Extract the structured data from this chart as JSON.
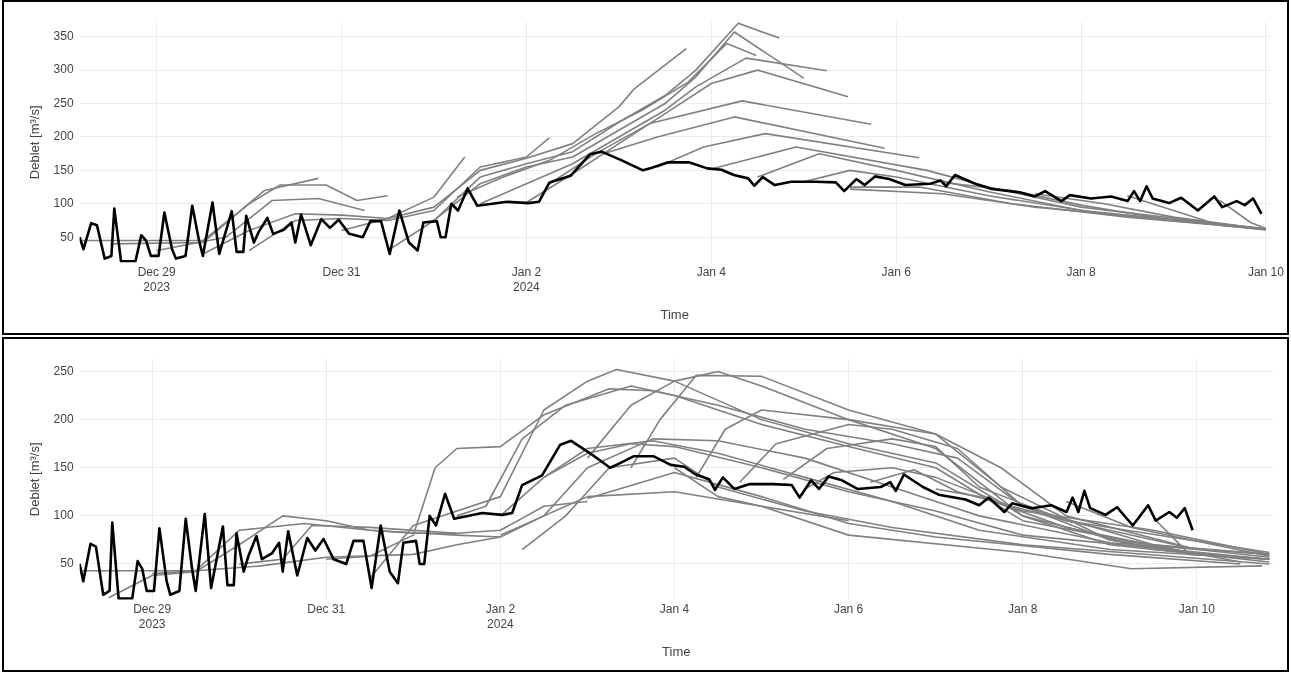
{
  "chart_data": [
    {
      "type": "line",
      "xlabel": "Time",
      "ylabel": "Deblet [m³/s]",
      "grid": true,
      "xlim": [
        "2023-12-28T04:00",
        "2024-01-10T01:00"
      ],
      "ylim": [
        12,
        372
      ],
      "xticks": [
        {
          "value": "2023-12-29",
          "label": "Dec 29\n2023"
        },
        {
          "value": "2023-12-31",
          "label": "Dec 31"
        },
        {
          "value": "2024-01-02",
          "label": "Jan 2\n2024"
        },
        {
          "value": "2024-01-04",
          "label": "Jan 4"
        },
        {
          "value": "2024-01-06",
          "label": "Jan 6"
        },
        {
          "value": "2024-01-08",
          "label": "Jan 8"
        },
        {
          "value": "2024-01-10",
          "label": "Jan 10"
        }
      ],
      "yticks": [
        50,
        100,
        150,
        200,
        250,
        300,
        350
      ],
      "series": [
        {
          "color": "#000000",
          "x": [
            "2023-12-28T04:00",
            "2023-12-28T05:00",
            "2023-12-28T07:00",
            "2023-12-28T08:30",
            "2023-12-28T10:30",
            "2023-12-28T12:15",
            "2023-12-28T13:00",
            "2023-12-28T14:45",
            "2023-12-28T18:30",
            "2023-12-28T20:00",
            "2023-12-28T21:15",
            "2023-12-28T22:30",
            "2023-12-29T00:30",
            "2023-12-29T02:00",
            "2023-12-29T04:00",
            "2023-12-29T05:00",
            "2023-12-29T07:30",
            "2023-12-29T09:15",
            "2023-12-29T11:00",
            "2023-12-29T12:00",
            "2023-12-29T14:30",
            "2023-12-29T16:15",
            "2023-12-29T19:30",
            "2023-12-29T20:45",
            "2023-12-29T22:30",
            "2023-12-29T23:15",
            "2023-12-30T01:15",
            "2023-12-30T02:30",
            "2023-12-30T04:45",
            "2023-12-30T06:15",
            "2023-12-30T09:00",
            "2023-12-30T11:00",
            "2023-12-30T12:00",
            "2023-12-30T13:30",
            "2023-12-30T16:00",
            "2023-12-30T18:45",
            "2023-12-30T21:00",
            "2023-12-30T23:15",
            "2023-12-31T02:00",
            "2023-12-31T05:30",
            "2023-12-31T07:30",
            "2023-12-31T10:15",
            "2023-12-31T12:30",
            "2023-12-31T15:00",
            "2023-12-31T17:30",
            "2023-12-31T19:45",
            "2023-12-31T21:15",
            "2024-01-01T00:45",
            "2024-01-01T01:45",
            "2024-01-01T03:00",
            "2024-01-01T04:30",
            "2024-01-01T06:15",
            "2024-01-01T08:45",
            "2024-01-01T11:15",
            "2024-01-01T19:00",
            "2024-01-02T00:30",
            "2024-01-02T03:15",
            "2024-01-02T06:00",
            "2024-01-02T11:30",
            "2024-01-02T16:30",
            "2024-01-02T19:30",
            "2024-01-03T00:45",
            "2024-01-03T06:15",
            "2024-01-03T08:35",
            "2024-01-03T12:50",
            "2024-01-03T18:10",
            "2024-01-03T22:55",
            "2024-01-04T02:40",
            "2024-01-04T05:50",
            "2024-01-04T09:35",
            "2024-01-04T11:10",
            "2024-01-04T13:20",
            "2024-01-04T16:30",
            "2024-01-04T20:45",
            "2024-01-05T03:10",
            "2024-01-05T08:20",
            "2024-01-05T10:30",
            "2024-01-05T13:40",
            "2024-01-05T15:50",
            "2024-01-05T18:30",
            "2024-01-05T22:10",
            "2024-01-06T02:25",
            "2024-01-06T08:50",
            "2024-01-06T11:30",
            "2024-01-06T13:00",
            "2024-01-06T15:15",
            "2024-01-06T20:30",
            "2024-01-07T00:50",
            "2024-01-07T08:15",
            "2024-01-07T12:00",
            "2024-01-07T14:40",
            "2024-01-07T18:55",
            "2024-01-07T21:05",
            "2024-01-08T02:35",
            "2024-01-08T07:50",
            "2024-01-08T12:05",
            "2024-01-08T13:45",
            "2024-01-08T15:20",
            "2024-01-08T17:00",
            "2024-01-08T18:35",
            "2024-01-08T22:50",
            "2024-01-09T02:00",
            "2024-01-09T06:20",
            "2024-01-09T10:35",
            "2024-01-09T12:40",
            "2024-01-09T16:25",
            "2024-01-09T18:30",
            "2024-01-09T20:40",
            "2024-01-09T22:50"
          ],
          "values": [
            50,
            32,
            71,
            68,
            18,
            22,
            93,
            14,
            14,
            53,
            45,
            22,
            22,
            87,
            32,
            18,
            22,
            97,
            45,
            22,
            102,
            25,
            89,
            28,
            28,
            82,
            42,
            58,
            79,
            55,
            61,
            72,
            42,
            84,
            38,
            77,
            64,
            76,
            55,
            50,
            74,
            74,
            25,
            90,
            42,
            30,
            72,
            74,
            50,
            50,
            100,
            90,
            123,
            97,
            103,
            101,
            103,
            132,
            142,
            174,
            178,
            165,
            150,
            154,
            162,
            162,
            153,
            151,
            143,
            138,
            127,
            140,
            128,
            133,
            133,
            132,
            119,
            137,
            128,
            141,
            137,
            128,
            130,
            135,
            126,
            143,
            130,
            122,
            117,
            111,
            119,
            104,
            113,
            108,
            111,
            104,
            119,
            104,
            126,
            108,
            101,
            109,
            90,
            111,
            95,
            104,
            98,
            108,
            85
          ]
        },
        {
          "color": "#808080",
          "x": [
            "2023-12-28T04:00",
            "2023-12-29T12:00",
            "2023-12-30T00:00",
            "2023-12-30T08:00",
            "2023-12-30T20:00",
            "2023-12-31T04:00",
            "2023-12-31T12:00"
          ],
          "values": [
            45,
            45,
            100,
            128,
            128,
            105,
            112
          ]
        },
        {
          "color": "#808080",
          "x": [
            "2023-12-28T12:00",
            "2023-12-29T12:00",
            "2023-12-30T04:00",
            "2023-12-30T18:00"
          ],
          "values": [
            40,
            42,
            120,
            138
          ]
        },
        {
          "color": "#808080",
          "x": [
            "2023-12-29T00:00",
            "2023-12-29T18:00",
            "2023-12-30T06:00",
            "2023-12-30T18:00",
            "2023-12-31T06:00"
          ],
          "values": [
            30,
            50,
            105,
            108,
            90
          ]
        },
        {
          "color": "#808080",
          "x": [
            "2023-12-29T12:00",
            "2023-12-30T00:00",
            "2023-12-30T12:00",
            "2023-12-31T00:00",
            "2023-12-31T12:00",
            "2024-01-01T00:00",
            "2024-01-01T08:00"
          ],
          "values": [
            25,
            60,
            85,
            83,
            78,
            110,
            170
          ]
        },
        {
          "color": "#808080",
          "x": [
            "2023-12-30T00:00",
            "2023-12-30T12:00",
            "2023-12-31T00:00",
            "2023-12-31T12:00",
            "2024-01-01T00:00",
            "2024-01-01T12:00",
            "2024-01-02T00:00",
            "2024-01-02T06:00"
          ],
          "values": [
            30,
            75,
            78,
            75,
            90,
            155,
            170,
            199
          ]
        },
        {
          "color": "#808080",
          "x": [
            "2023-12-31T00:00",
            "2023-12-31T12:00",
            "2024-01-01T00:00",
            "2024-01-01T12:00",
            "2024-01-02T00:00",
            "2024-01-02T12:00",
            "2024-01-03T00:00",
            "2024-01-03T04:00",
            "2024-01-03T17:30"
          ],
          "values": [
            60,
            78,
            95,
            150,
            168,
            190,
            245,
            272,
            332
          ]
        },
        {
          "color": "#808080",
          "x": [
            "2023-12-31T12:00",
            "2024-01-01T00:00",
            "2024-01-01T12:00",
            "2024-01-02T00:00",
            "2024-01-02T12:00",
            "2024-01-03T00:00",
            "2024-01-03T12:00",
            "2024-01-03T20:00",
            "2024-01-04T07:00",
            "2024-01-04T17:40"
          ],
          "values": [
            30,
            75,
            140,
            160,
            178,
            222,
            262,
            300,
            370,
            348
          ]
        },
        {
          "color": "#808080",
          "x": [
            "2024-01-01T00:00",
            "2024-01-01T12:00",
            "2024-01-02T00:00",
            "2024-01-02T12:00",
            "2024-01-03T00:00",
            "2024-01-03T12:00",
            "2024-01-03T20:00",
            "2024-01-04T06:00",
            "2024-01-05T00:00"
          ],
          "values": [
            75,
            130,
            155,
            170,
            210,
            250,
            290,
            357,
            288
          ]
        },
        {
          "color": "#808080",
          "x": [
            "2024-01-01T06:00",
            "2024-01-01T18:00",
            "2024-01-02T06:00",
            "2024-01-02T18:00",
            "2024-01-03T06:00",
            "2024-01-03T18:00",
            "2024-01-04T04:00",
            "2024-01-04T11:40"
          ],
          "values": [
            110,
            140,
            165,
            205,
            240,
            282,
            340,
            322
          ]
        },
        {
          "color": "#808080",
          "x": [
            "2024-01-01T12:00",
            "2024-01-02T00:00",
            "2024-01-02T12:00",
            "2024-01-03T00:00",
            "2024-01-03T12:00",
            "2024-01-03T20:00",
            "2024-01-04T09:00",
            "2024-01-05T06:00"
          ],
          "values": [
            100,
            130,
            160,
            200,
            240,
            275,
            318,
            299
          ]
        },
        {
          "color": "#808080",
          "x": [
            "2024-01-02T00:00",
            "2024-01-02T12:00",
            "2024-01-03T00:00",
            "2024-01-03T12:00",
            "2024-01-04T00:00",
            "2024-01-04T12:00",
            "2024-01-05T11:30"
          ],
          "values": [
            102,
            145,
            190,
            235,
            280,
            300,
            260
          ]
        },
        {
          "color": "#808080",
          "x": [
            "2024-01-02T06:00",
            "2024-01-02T18:00",
            "2024-01-03T08:00",
            "2024-01-04T08:00",
            "2024-01-05T17:30"
          ],
          "values": [
            130,
            175,
            220,
            254,
            219
          ]
        },
        {
          "color": "#808080",
          "x": [
            "2024-01-02T20:00",
            "2024-01-03T10:00",
            "2024-01-04T06:00",
            "2024-01-05T21:00"
          ],
          "values": [
            175,
            200,
            230,
            183
          ]
        },
        {
          "color": "#808080",
          "x": [
            "2024-01-03T10:00",
            "2024-01-03T22:00",
            "2024-01-04T14:00",
            "2024-01-06T06:00"
          ],
          "values": [
            155,
            185,
            205,
            169
          ]
        },
        {
          "color": "#808080",
          "x": [
            "2024-01-04T00:00",
            "2024-01-04T12:00",
            "2024-01-04T22:00",
            "2024-01-06T08:00",
            "2024-01-07T00:00",
            "2024-01-08T00:00",
            "2024-01-10T00:00"
          ],
          "values": [
            152,
            170,
            185,
            150,
            125,
            95,
            62
          ]
        },
        {
          "color": "#808080",
          "x": [
            "2024-01-04T12:00",
            "2024-01-05T04:00",
            "2024-01-06T00:00",
            "2024-01-07T00:00",
            "2024-01-08T00:00",
            "2024-01-10T00:00"
          ],
          "values": [
            140,
            175,
            150,
            118,
            90,
            63
          ]
        },
        {
          "color": "#808080",
          "x": [
            "2024-01-05T00:00",
            "2024-01-05T12:00",
            "2024-01-06T00:00",
            "2024-01-07T00:00",
            "2024-01-08T06:00",
            "2024-01-10T00:00"
          ],
          "values": [
            133,
            150,
            140,
            112,
            85,
            62
          ]
        },
        {
          "color": "#808080",
          "x": [
            "2024-01-05T12:00",
            "2024-01-06T06:00",
            "2024-01-07T06:00",
            "2024-01-08T12:00",
            "2024-01-10T00:00"
          ],
          "values": [
            125,
            125,
            100,
            80,
            62
          ]
        },
        {
          "color": "#808080",
          "x": [
            "2024-01-05T12:00",
            "2024-01-06T12:00",
            "2024-01-07T12:00",
            "2024-01-08T12:00",
            "2024-01-10T00:00"
          ],
          "values": [
            122,
            115,
            95,
            82,
            61
          ]
        },
        {
          "color": "#808080",
          "x": [
            "2024-01-06T12:00",
            "2024-01-07T06:00",
            "2024-01-08T00:00",
            "2024-01-09T00:00",
            "2024-01-10T00:00"
          ],
          "values": [
            132,
            120,
            98,
            75,
            62
          ]
        },
        {
          "color": "#808080",
          "x": [
            "2024-01-07T12:00",
            "2024-01-08T06:00",
            "2024-01-09T00:00",
            "2024-01-10T00:00"
          ],
          "values": [
            115,
            100,
            80,
            62
          ]
        },
        {
          "color": "#808080",
          "x": [
            "2024-01-08T12:00",
            "2024-01-09T00:00",
            "2024-01-09T12:00",
            "2024-01-10T00:00"
          ],
          "values": [
            112,
            90,
            68,
            62
          ]
        },
        {
          "color": "#808080",
          "x": [
            "2024-01-09T12:00",
            "2024-01-09T20:00",
            "2024-01-10T00:00"
          ],
          "values": [
            105,
            72,
            63
          ]
        }
      ]
    },
    {
      "type": "line",
      "xlabel": "Time",
      "ylabel": "Deblet [m³/s]",
      "grid": true,
      "xlim": [
        "2023-12-28T04:00",
        "2024-01-10T21:00"
      ],
      "ylim": [
        13,
        263
      ],
      "xticks": [
        {
          "value": "2023-12-29",
          "label": "Dec 29\n2023"
        },
        {
          "value": "2023-12-31",
          "label": "Dec 31"
        },
        {
          "value": "2024-01-02",
          "label": "Jan 2\n2024"
        },
        {
          "value": "2024-01-04",
          "label": "Jan 4"
        },
        {
          "value": "2024-01-06",
          "label": "Jan 6"
        },
        {
          "value": "2024-01-08",
          "label": "Jan 8"
        },
        {
          "value": "2024-01-10",
          "label": "Jan 10"
        }
      ],
      "yticks": [
        50,
        100,
        150,
        200,
        250
      ],
      "series": [
        {
          "color": "#000000",
          "x": [
            "2023-12-28T04:00",
            "2023-12-28T05:00",
            "2023-12-28T07:00",
            "2023-12-28T08:30",
            "2023-12-28T10:30",
            "2023-12-28T12:15",
            "2023-12-28T13:00",
            "2023-12-28T14:45",
            "2023-12-28T18:30",
            "2023-12-28T20:00",
            "2023-12-28T21:15",
            "2023-12-28T22:30",
            "2023-12-29T00:30",
            "2023-12-29T02:00",
            "2023-12-29T04:00",
            "2023-12-29T05:00",
            "2023-12-29T07:30",
            "2023-12-29T09:15",
            "2023-12-29T11:00",
            "2023-12-29T12:00",
            "2023-12-29T14:30",
            "2023-12-29T16:15",
            "2023-12-29T19:30",
            "2023-12-29T20:45",
            "2023-12-29T22:30",
            "2023-12-29T23:15",
            "2023-12-30T01:15",
            "2023-12-30T02:30",
            "2023-12-30T04:45",
            "2023-12-30T06:15",
            "2023-12-30T09:00",
            "2023-12-30T11:00",
            "2023-12-30T12:00",
            "2023-12-30T13:30",
            "2023-12-30T16:00",
            "2023-12-30T18:45",
            "2023-12-30T21:00",
            "2023-12-30T23:15",
            "2023-12-31T02:00",
            "2023-12-31T05:30",
            "2023-12-31T07:30",
            "2023-12-31T10:15",
            "2023-12-31T12:30",
            "2023-12-31T15:00",
            "2023-12-31T17:30",
            "2023-12-31T19:45",
            "2023-12-31T21:15",
            "2024-01-01T00:45",
            "2024-01-01T01:45",
            "2024-01-01T03:00",
            "2024-01-01T04:30",
            "2024-01-01T06:15",
            "2024-01-01T08:45",
            "2024-01-01T11:15",
            "2024-01-01T19:00",
            "2024-01-02T00:30",
            "2024-01-02T03:15",
            "2024-01-02T06:00",
            "2024-01-02T11:30",
            "2024-01-02T16:30",
            "2024-01-02T19:30",
            "2024-01-03T00:45",
            "2024-01-03T06:15",
            "2024-01-03T08:35",
            "2024-01-03T12:50",
            "2024-01-03T18:10",
            "2024-01-03T22:55",
            "2024-01-04T02:40",
            "2024-01-04T05:50",
            "2024-01-04T09:35",
            "2024-01-04T11:10",
            "2024-01-04T13:20",
            "2024-01-04T16:30",
            "2024-01-04T20:45",
            "2024-01-05T03:10",
            "2024-01-05T08:20",
            "2024-01-05T10:30",
            "2024-01-05T13:40",
            "2024-01-05T15:50",
            "2024-01-05T18:30",
            "2024-01-05T22:10",
            "2024-01-06T02:25",
            "2024-01-06T08:50",
            "2024-01-06T11:30",
            "2024-01-06T13:00",
            "2024-01-06T15:15",
            "2024-01-06T20:30",
            "2024-01-07T00:50",
            "2024-01-07T08:15",
            "2024-01-07T12:00",
            "2024-01-07T14:40",
            "2024-01-07T18:55",
            "2024-01-07T21:05",
            "2024-01-08T02:35",
            "2024-01-08T07:50",
            "2024-01-08T12:05",
            "2024-01-08T13:45",
            "2024-01-08T15:20",
            "2024-01-08T17:00",
            "2024-01-08T18:35",
            "2024-01-08T22:50",
            "2024-01-09T02:00",
            "2024-01-09T06:20",
            "2024-01-09T10:35",
            "2024-01-09T12:40",
            "2024-01-09T16:25",
            "2024-01-09T18:30",
            "2024-01-09T20:40",
            "2024-01-09T22:50"
          ],
          "values": [
            50,
            32,
            71,
            68,
            18,
            22,
            93,
            14,
            14,
            53,
            45,
            22,
            22,
            87,
            32,
            18,
            22,
            97,
            45,
            22,
            102,
            25,
            89,
            28,
            28,
            82,
            42,
            58,
            79,
            55,
            61,
            72,
            42,
            84,
            38,
            77,
            64,
            76,
            55,
            50,
            74,
            74,
            25,
            90,
            42,
            30,
            72,
            74,
            50,
            50,
            100,
            90,
            123,
            97,
            103,
            101,
            103,
            132,
            142,
            174,
            178,
            165,
            150,
            154,
            162,
            162,
            153,
            151,
            143,
            138,
            127,
            140,
            128,
            133,
            133,
            132,
            119,
            137,
            128,
            141,
            137,
            128,
            130,
            135,
            126,
            143,
            130,
            122,
            117,
            111,
            119,
            104,
            113,
            108,
            111,
            104,
            119,
            104,
            126,
            108,
            101,
            109,
            90,
            111,
            95,
            104,
            98,
            108,
            85
          ]
        },
        {
          "color": "#808080",
          "x": [
            "2023-12-28T04:00",
            "2023-12-29T12:00",
            "2023-12-30T06:00",
            "2023-12-31T00:00",
            "2024-01-01T00:00",
            "2024-01-01T12:00",
            "2024-01-02T00:00",
            "2024-01-02T12:00",
            "2024-01-03T00:00",
            "2024-01-04T00:00",
            "2024-01-05T00:00",
            "2024-01-06T00:00"
          ],
          "values": [
            43,
            43,
            48,
            57,
            60,
            70,
            78,
            100,
            120,
            125,
            110,
            95
          ]
        },
        {
          "color": "#808080",
          "x": [
            "2023-12-28T12:00",
            "2023-12-29T00:00",
            "2023-12-29T12:00",
            "2023-12-30T00:00",
            "2023-12-30T12:00",
            "2023-12-31T00:00",
            "2023-12-31T12:00",
            "2024-01-01T00:00",
            "2024-01-01T12:00"
          ],
          "values": [
            15,
            38,
            42,
            70,
            100,
            95,
            85,
            82,
            82
          ]
        },
        {
          "color": "#808080",
          "x": [
            "2023-12-29T00:00",
            "2023-12-29T12:00",
            "2023-12-30T00:00",
            "2023-12-30T18:00",
            "2023-12-31T12:00",
            "2024-01-01T12:00",
            "2024-01-02T00:00"
          ],
          "values": [
            40,
            43,
            85,
            92,
            85,
            80,
            78
          ]
        },
        {
          "color": "#808080",
          "x": [
            "2023-12-30T00:00",
            "2023-12-30T12:00",
            "2023-12-30T20:00",
            "2023-12-31T12:00",
            "2024-01-01T12:00",
            "2024-01-02T00:00",
            "2024-01-02T12:00",
            "2024-01-03T00:00"
          ],
          "values": [
            50,
            55,
            90,
            88,
            82,
            85,
            110,
            115
          ]
        },
        {
          "color": "#808080",
          "x": [
            "2023-12-31T00:00",
            "2023-12-31T12:00",
            "2024-01-01T00:00",
            "2024-01-01T06:00",
            "2024-01-01T12:00",
            "2024-01-02T00:00",
            "2024-01-02T12:00",
            "2024-01-03T06:00",
            "2024-01-03T18:00",
            "2024-01-04T12:00",
            "2024-01-05T12:00",
            "2024-01-06T12:00",
            "2024-01-07T06:00",
            "2024-01-08T00:00",
            "2024-01-09T00:00",
            "2024-01-10T00:00",
            "2024-01-10T20:00"
          ],
          "values": [
            55,
            58,
            80,
            150,
            170,
            172,
            205,
            232,
            230,
            215,
            190,
            175,
            160,
            110,
            75,
            60,
            55
          ]
        },
        {
          "color": "#808080",
          "x": [
            "2023-12-31T12:00",
            "2024-01-01T00:00",
            "2024-01-01T12:00",
            "2024-01-02T00:00",
            "2024-01-02T12:00",
            "2024-01-03T00:00",
            "2024-01-03T08:00",
            "2024-01-04T00:00",
            "2024-01-05T00:00",
            "2024-01-06T00:00",
            "2024-01-07T00:00",
            "2024-01-08T00:00",
            "2024-01-09T00:00",
            "2024-01-10T20:00"
          ],
          "values": [
            35,
            90,
            105,
            120,
            210,
            240,
            252,
            240,
            200,
            175,
            155,
            100,
            70,
            52
          ]
        },
        {
          "color": "#808080",
          "x": [
            "2024-01-01T12:00",
            "2024-01-01T20:00",
            "2024-01-02T06:00",
            "2024-01-02T18:00",
            "2024-01-03T12:00",
            "2024-01-04T00:00",
            "2024-01-05T00:00",
            "2024-01-06T00:00",
            "2024-01-07T00:00",
            "2024-01-08T00:00",
            "2024-01-10T12:00"
          ],
          "values": [
            100,
            110,
            180,
            215,
            235,
            225,
            195,
            172,
            150,
            95,
            52
          ]
        },
        {
          "color": "#808080",
          "x": [
            "2024-01-02T00:00",
            "2024-01-02T12:00",
            "2024-01-03T00:00",
            "2024-01-03T18:00",
            "2024-01-04T12:00",
            "2024-01-05T12:00",
            "2024-01-06T12:00",
            "2024-01-07T12:00",
            "2024-01-09T00:00",
            "2024-01-10T20:00"
          ],
          "values": [
            100,
            140,
            170,
            178,
            165,
            140,
            115,
            85,
            65,
            55
          ]
        },
        {
          "color": "#808080",
          "x": [
            "2024-01-02T00:00",
            "2024-01-02T12:00",
            "2024-01-03T00:00",
            "2024-01-03T18:00",
            "2024-01-04T12:00",
            "2024-01-05T12:00",
            "2024-01-06T12:00",
            "2024-01-07T12:00",
            "2024-01-09T00:00",
            "2024-01-10T20:00"
          ],
          "values": [
            80,
            100,
            150,
            180,
            178,
            160,
            130,
            100,
            72,
            60
          ]
        },
        {
          "color": "#808080",
          "x": [
            "2024-01-02T06:00",
            "2024-01-02T18:00",
            "2024-01-03T06:00",
            "2024-01-04T00:00",
            "2024-01-04T12:00",
            "2024-01-05T12:00",
            "2024-01-06T12:00",
            "2024-01-08T00:00",
            "2024-01-10T20:00"
          ],
          "values": [
            65,
            100,
            150,
            160,
            130,
            105,
            88,
            70,
            50
          ]
        },
        {
          "color": "#808080",
          "x": [
            "2024-01-02T12:00",
            "2024-01-03T00:00",
            "2024-01-03T12:00",
            "2024-01-04T00:00",
            "2024-01-05T00:00",
            "2024-01-06T00:00",
            "2024-01-07T00:00",
            "2024-01-08T00:00",
            "2024-01-10T20:00"
          ],
          "values": [
            140,
            165,
            175,
            172,
            150,
            125,
            105,
            80,
            55
          ]
        },
        {
          "color": "#808080",
          "x": [
            "2024-01-03T00:00",
            "2024-01-03T12:00",
            "2024-01-04T00:00",
            "2024-01-04T12:00",
            "2024-01-05T00:00",
            "2024-01-06T00:00",
            "2024-01-07T00:00",
            "2024-01-08T00:00",
            "2024-01-09T12:00",
            "2024-01-10T20:00"
          ],
          "values": [
            160,
            215,
            240,
            250,
            235,
            200,
            170,
            100,
            65,
            55
          ]
        },
        {
          "color": "#808080",
          "x": [
            "2024-01-03T12:00",
            "2024-01-03T20:00",
            "2024-01-04T06:00",
            "2024-01-05T00:00",
            "2024-01-06T00:00",
            "2024-01-07T00:00",
            "2024-01-07T18:00",
            "2024-01-09T00:00",
            "2024-01-10T20:00"
          ],
          "values": [
            150,
            200,
            246,
            245,
            210,
            185,
            130,
            75,
            57
          ]
        },
        {
          "color": "#808080",
          "x": [
            "2024-01-04T06:00",
            "2024-01-04T14:00",
            "2024-01-05T00:00",
            "2024-01-06T00:00",
            "2024-01-07T00:00",
            "2024-01-07T18:00",
            "2024-01-08T12:00",
            "2024-01-10T00:00"
          ],
          "values": [
            140,
            190,
            210,
            200,
            185,
            150,
            100,
            65
          ]
        },
        {
          "color": "#808080",
          "x": [
            "2024-01-04T18:00",
            "2024-01-05T04:00",
            "2024-01-06T00:00",
            "2024-01-06T12:00",
            "2024-01-07T06:00",
            "2024-01-08T00:00",
            "2024-01-09T12:00",
            "2024-01-10T20:00"
          ],
          "values": [
            135,
            175,
            195,
            190,
            170,
            110,
            70,
            60
          ]
        },
        {
          "color": "#808080",
          "x": [
            "2024-01-05T06:00",
            "2024-01-05T18:00",
            "2024-01-06T12:00",
            "2024-01-07T00:00",
            "2024-01-07T12:00",
            "2024-01-08T12:00",
            "2024-01-10T20:00"
          ],
          "values": [
            138,
            170,
            180,
            172,
            130,
            95,
            62
          ]
        },
        {
          "color": "#808080",
          "x": [
            "2024-01-05T12:00",
            "2024-01-05T20:00",
            "2024-01-06T12:00",
            "2024-01-07T00:00",
            "2024-01-08T00:00",
            "2024-01-09T12:00",
            "2024-01-10T20:00"
          ],
          "values": [
            128,
            145,
            150,
            140,
            105,
            85,
            60
          ]
        },
        {
          "color": "#808080",
          "x": [
            "2024-01-06T06:00",
            "2024-01-06T18:00",
            "2024-01-07T06:00",
            "2024-01-08T12:00",
            "2024-01-10T00:00"
          ],
          "values": [
            135,
            148,
            125,
            95,
            65
          ]
        },
        {
          "color": "#808080",
          "x": [
            "2024-01-07T00:00",
            "2024-01-07T12:00",
            "2024-01-08T12:00",
            "2024-01-10T00:00"
          ],
          "values": [
            128,
            120,
            88,
            60
          ]
        },
        {
          "color": "#808080",
          "x": [
            "2024-01-08T12:00",
            "2024-01-09T06:00",
            "2024-01-10T20:00"
          ],
          "values": [
            115,
            88,
            58
          ]
        },
        {
          "color": "#808080",
          "x": [
            "2024-01-09T12:00",
            "2024-01-09T22:00",
            "2024-01-10T20:00"
          ],
          "values": [
            98,
            60,
            55
          ]
        },
        {
          "color": "#808080",
          "x": [
            "2024-01-03T00:00",
            "2024-01-04T00:00",
            "2024-01-05T00:00",
            "2024-01-06T00:00",
            "2024-01-07T00:00",
            "2024-01-09T00:00",
            "2024-01-10T12:00"
          ],
          "values": [
            118,
            145,
            120,
            92,
            78,
            60,
            50
          ]
        },
        {
          "color": "#808080",
          "x": [
            "2024-01-04T00:00",
            "2024-01-04T12:00",
            "2024-01-05T00:00",
            "2024-01-06T00:00",
            "2024-01-08T00:00",
            "2024-01-09T06:00",
            "2024-01-10T18:00"
          ],
          "values": [
            150,
            120,
            110,
            80,
            62,
            45,
            48
          ]
        }
      ]
    }
  ]
}
